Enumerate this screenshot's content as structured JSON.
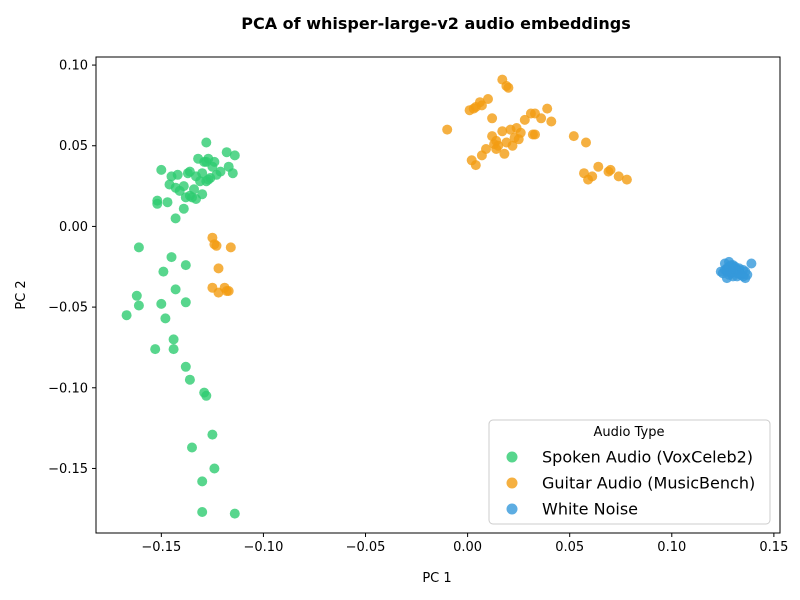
{
  "chart_data": {
    "type": "scatter",
    "title": "PCA of whisper-large-v2 audio embeddings",
    "xlabel": "PC 1",
    "ylabel": "PC 2",
    "xlim": [
      -0.182,
      0.153
    ],
    "ylim": [
      -0.19,
      0.105
    ],
    "x_ticks": [
      -0.15,
      -0.1,
      -0.05,
      0.0,
      0.05,
      0.1,
      0.15
    ],
    "x_tick_labels": [
      "−0.15",
      "−0.10",
      "−0.05",
      "0.00",
      "0.05",
      "0.10",
      "0.15"
    ],
    "y_ticks": [
      -0.15,
      -0.1,
      -0.05,
      0.0,
      0.05,
      0.1
    ],
    "y_tick_labels": [
      "−0.15",
      "−0.10",
      "−0.05",
      "0.00",
      "0.05",
      "0.10"
    ],
    "grid": false,
    "legend": {
      "title": "Audio Type",
      "placement": "lower-right"
    },
    "series": [
      {
        "name": "Spoken Audio (VoxCeleb2)",
        "color": "#2ecc71",
        "x": [
          -0.128,
          -0.132,
          -0.127,
          -0.129,
          -0.124,
          -0.118,
          -0.114,
          -0.15,
          -0.145,
          -0.142,
          -0.137,
          -0.133,
          -0.13,
          -0.126,
          -0.121,
          -0.117,
          -0.136,
          -0.139,
          -0.143,
          -0.146,
          -0.131,
          -0.128,
          -0.134,
          -0.141,
          -0.136,
          -0.13,
          -0.127,
          -0.123,
          -0.115,
          -0.138,
          -0.147,
          -0.152,
          -0.152,
          -0.139,
          -0.143,
          -0.135,
          -0.133,
          -0.128,
          -0.125,
          -0.161,
          -0.145,
          -0.138,
          -0.149,
          -0.143,
          -0.162,
          -0.161,
          -0.15,
          -0.138,
          -0.167,
          -0.148,
          -0.144,
          -0.153,
          -0.144,
          -0.138,
          -0.136,
          -0.129,
          -0.128,
          -0.125,
          -0.135,
          -0.124,
          -0.13,
          -0.13,
          -0.114
        ],
        "y": [
          0.052,
          0.042,
          0.042,
          0.04,
          0.04,
          0.046,
          0.044,
          0.035,
          0.031,
          0.032,
          0.033,
          0.031,
          0.033,
          0.03,
          0.034,
          0.037,
          0.034,
          0.025,
          0.024,
          0.026,
          0.028,
          0.028,
          0.023,
          0.022,
          0.019,
          0.02,
          0.029,
          0.032,
          0.033,
          0.018,
          0.015,
          0.014,
          0.016,
          0.011,
          0.005,
          0.018,
          0.017,
          0.04,
          0.037,
          -0.013,
          -0.019,
          -0.024,
          -0.028,
          -0.039,
          -0.043,
          -0.049,
          -0.048,
          -0.047,
          -0.055,
          -0.057,
          -0.07,
          -0.076,
          -0.076,
          -0.087,
          -0.095,
          -0.103,
          -0.105,
          -0.129,
          -0.137,
          -0.15,
          -0.158,
          -0.177,
          -0.178
        ]
      },
      {
        "name": "Guitar Audio (MusicBench)",
        "color": "#f39c12",
        "x": [
          0.017,
          0.019,
          0.02,
          0.01,
          0.004,
          0.001,
          0.006,
          0.003,
          0.007,
          0.012,
          -0.01,
          0.031,
          0.033,
          0.039,
          0.036,
          0.041,
          0.028,
          0.024,
          0.021,
          0.026,
          0.017,
          0.012,
          0.014,
          0.023,
          0.025,
          0.019,
          0.009,
          0.015,
          0.022,
          0.032,
          0.033,
          0.052,
          0.058,
          0.013,
          0.014,
          0.018,
          0.007,
          0.002,
          0.004,
          0.064,
          0.057,
          0.069,
          0.07,
          0.061,
          0.059,
          0.074,
          0.078,
          -0.125,
          -0.124,
          -0.123,
          -0.116,
          -0.122,
          -0.125,
          -0.119,
          -0.117,
          -0.122,
          -0.118
        ],
        "y": [
          0.091,
          0.087,
          0.086,
          0.079,
          0.074,
          0.072,
          0.077,
          0.073,
          0.075,
          0.067,
          0.06,
          0.07,
          0.07,
          0.073,
          0.067,
          0.065,
          0.066,
          0.061,
          0.06,
          0.058,
          0.059,
          0.056,
          0.053,
          0.055,
          0.054,
          0.052,
          0.048,
          0.05,
          0.05,
          0.057,
          0.057,
          0.056,
          0.052,
          0.051,
          0.048,
          0.045,
          0.044,
          0.041,
          0.038,
          0.037,
          0.033,
          0.034,
          0.035,
          0.031,
          0.029,
          0.031,
          0.029,
          -0.007,
          -0.011,
          -0.012,
          -0.013,
          -0.026,
          -0.038,
          -0.038,
          -0.04,
          -0.041,
          -0.04
        ]
      },
      {
        "name": "White Noise",
        "color": "#3498db",
        "x": [
          0.126,
          0.128,
          0.13,
          0.127,
          0.129,
          0.131,
          0.133,
          0.132,
          0.128,
          0.125,
          0.127,
          0.129,
          0.13,
          0.134,
          0.136,
          0.135,
          0.133,
          0.131,
          0.129,
          0.126,
          0.124,
          0.127,
          0.132,
          0.134,
          0.136,
          0.137,
          0.139,
          0.128,
          0.13,
          0.131,
          0.133,
          0.135,
          0.127,
          0.129,
          0.13
        ],
        "y": [
          -0.023,
          -0.022,
          -0.024,
          -0.026,
          -0.027,
          -0.025,
          -0.027,
          -0.029,
          -0.03,
          -0.029,
          -0.028,
          -0.029,
          -0.031,
          -0.03,
          -0.028,
          -0.027,
          -0.026,
          -0.027,
          -0.028,
          -0.027,
          -0.028,
          -0.032,
          -0.031,
          -0.03,
          -0.032,
          -0.03,
          -0.023,
          -0.025,
          -0.028,
          -0.026,
          -0.029,
          -0.031,
          -0.027,
          -0.024,
          -0.026
        ]
      }
    ]
  }
}
